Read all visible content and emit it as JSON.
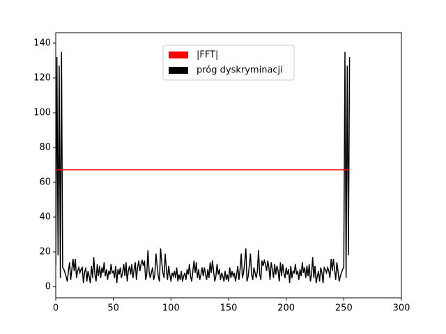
{
  "chart_data": {
    "type": "line",
    "series": [
      {
        "name": "|FFT|",
        "color": "#ff0000",
        "x": [
          0,
          255
        ],
        "values": [
          67.2,
          67.2
        ]
      },
      {
        "name": "próg dyskryminacji",
        "color": "#000000",
        "x": [
          0,
          1,
          2,
          3,
          4,
          5,
          6,
          7,
          8,
          9,
          10,
          11,
          12,
          13,
          14,
          15,
          16,
          17,
          18,
          19,
          20,
          21,
          22,
          23,
          24,
          25,
          26,
          27,
          28,
          29,
          30,
          31,
          32,
          33,
          34,
          35,
          36,
          37,
          38,
          39,
          40,
          41,
          42,
          43,
          44,
          45,
          46,
          47,
          48,
          49,
          50,
          51,
          52,
          53,
          54,
          55,
          56,
          57,
          58,
          59,
          60,
          61,
          62,
          63,
          64,
          65,
          66,
          67,
          68,
          69,
          70,
          71,
          72,
          73,
          74,
          75,
          76,
          77,
          78,
          79,
          80,
          81,
          82,
          83,
          84,
          85,
          86,
          87,
          88,
          89,
          90,
          91,
          92,
          93,
          94,
          95,
          96,
          97,
          98,
          99,
          100,
          101,
          102,
          103,
          104,
          105,
          106,
          107,
          108,
          109,
          110,
          111,
          112,
          113,
          114,
          115,
          116,
          117,
          118,
          119,
          120,
          121,
          122,
          123,
          124,
          125,
          126,
          127,
          128,
          129,
          130,
          131,
          132,
          133,
          134,
          135,
          136,
          137,
          138,
          139,
          140,
          141,
          142,
          143,
          144,
          145,
          146,
          147,
          148,
          149,
          150,
          151,
          152,
          153,
          154,
          155,
          156,
          157,
          158,
          159,
          160,
          161,
          162,
          163,
          164,
          165,
          166,
          167,
          168,
          169,
          170,
          171,
          172,
          173,
          174,
          175,
          176,
          177,
          178,
          179,
          180,
          181,
          182,
          183,
          184,
          185,
          186,
          187,
          188,
          189,
          190,
          191,
          192,
          193,
          194,
          195,
          196,
          197,
          198,
          199,
          200,
          201,
          202,
          203,
          204,
          205,
          206,
          207,
          208,
          209,
          210,
          211,
          212,
          213,
          214,
          215,
          216,
          217,
          218,
          219,
          220,
          221,
          222,
          223,
          224,
          225,
          226,
          227,
          228,
          229,
          230,
          231,
          232,
          233,
          234,
          235,
          236,
          237,
          238,
          239,
          240,
          241,
          242,
          243,
          244,
          245,
          246,
          247,
          248,
          249,
          250,
          251,
          252,
          253,
          254,
          255
        ],
        "values": [
          12,
          132,
          18,
          127,
          5,
          135,
          11,
          10,
          8,
          6,
          3,
          9,
          14,
          4,
          10,
          16,
          9,
          16,
          5,
          9,
          11,
          8,
          10,
          11,
          2,
          8,
          11,
          3,
          9,
          6,
          2,
          12,
          5,
          17,
          7,
          3,
          13,
          6,
          12,
          5,
          11,
          8,
          14,
          6,
          10,
          4,
          9,
          7,
          13,
          8,
          9,
          5,
          12,
          2,
          10,
          7,
          11,
          5,
          8,
          13,
          6,
          14,
          3,
          9,
          12,
          7,
          13,
          5,
          10,
          14,
          4,
          11,
          15,
          9,
          13,
          15,
          12,
          15,
          4,
          7,
          21,
          9,
          5,
          8,
          11,
          4,
          7,
          19,
          12,
          6,
          3,
          22,
          14,
          8,
          5,
          19,
          10,
          4,
          12,
          7,
          3,
          8,
          6,
          9,
          5,
          11,
          3,
          7,
          4,
          9,
          3,
          6,
          8,
          4,
          10,
          7,
          13,
          6,
          3,
          9,
          15,
          8,
          14,
          5,
          10,
          4,
          7,
          11,
          6,
          11,
          7,
          4,
          10,
          5,
          14,
          8,
          15,
          9,
          3,
          6,
          13,
          7,
          10,
          4,
          8,
          6,
          3,
          9,
          4,
          7,
          3,
          11,
          5,
          9,
          6,
          8,
          3,
          7,
          12,
          4,
          10,
          19,
          5,
          8,
          14,
          22,
          3,
          6,
          12,
          19,
          7,
          4,
          11,
          8,
          5,
          9,
          21,
          7,
          4,
          15,
          12,
          15,
          13,
          9,
          15,
          11,
          4,
          14,
          10,
          5,
          13,
          7,
          12,
          9,
          3,
          14,
          6,
          13,
          8,
          5,
          11,
          7,
          10,
          2,
          12,
          5,
          9,
          8,
          13,
          7,
          9,
          4,
          10,
          6,
          14,
          8,
          11,
          5,
          12,
          6,
          13,
          3,
          7,
          17,
          5,
          12,
          2,
          6,
          9,
          3,
          11,
          8,
          2,
          11,
          10,
          8,
          11,
          9,
          5,
          16,
          9,
          16,
          10,
          4,
          14,
          9,
          3,
          6,
          8,
          10,
          11,
          135,
          5,
          127,
          18,
          132
        ]
      }
    ],
    "xlim": [
      0,
      300
    ],
    "xticks": [
      0,
      50,
      100,
      150,
      200,
      250,
      300
    ],
    "ylim": [
      -6.4,
      146
    ],
    "yticks": [
      0,
      20,
      40,
      60,
      80,
      100,
      120,
      140
    ],
    "legend": "upper center"
  }
}
